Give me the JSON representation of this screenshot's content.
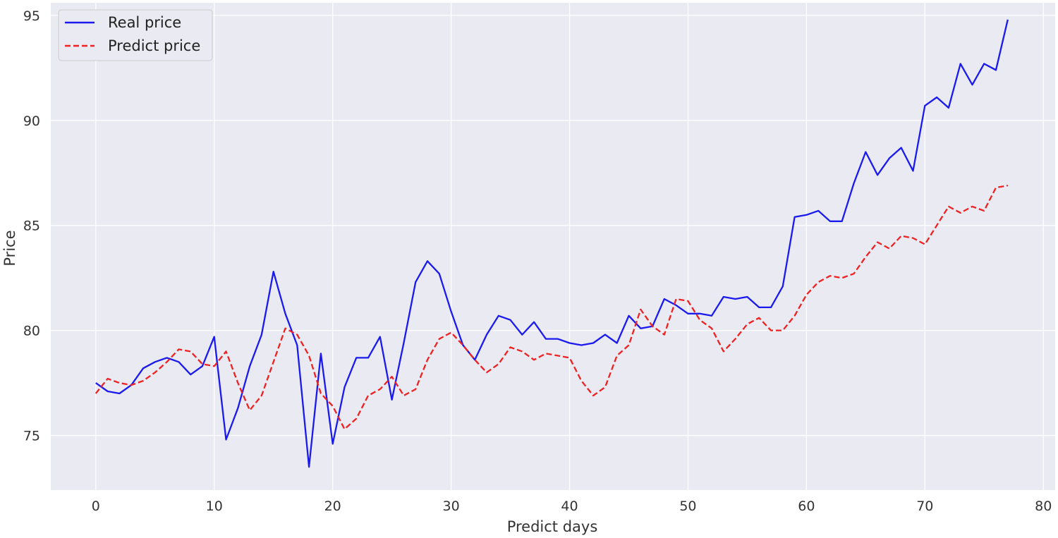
{
  "chart_data": {
    "type": "line",
    "xlabel": "Predict days",
    "ylabel": "Price",
    "xlim": [
      -3.8,
      81.0
    ],
    "ylim": [
      72.4,
      95.6
    ],
    "xticks": [
      0,
      10,
      20,
      30,
      40,
      50,
      60,
      70,
      80
    ],
    "yticks": [
      75,
      80,
      85,
      90,
      95
    ],
    "grid": true,
    "legend_position": "top-left",
    "colors": {
      "background": "#eaeaf2",
      "grid": "#ffffff",
      "real": "#1a1aee",
      "predict": "#ee2222"
    },
    "x": [
      0,
      1,
      2,
      3,
      4,
      5,
      6,
      7,
      8,
      9,
      10,
      11,
      12,
      13,
      14,
      15,
      16,
      17,
      18,
      19,
      20,
      21,
      22,
      23,
      24,
      25,
      26,
      27,
      28,
      29,
      30,
      31,
      32,
      33,
      34,
      35,
      36,
      37,
      38,
      39,
      40,
      41,
      42,
      43,
      44,
      45,
      46,
      47,
      48,
      49,
      50,
      51,
      52,
      53,
      54,
      55,
      56,
      57,
      58,
      59,
      60,
      61,
      62,
      63,
      64,
      65,
      66,
      67,
      68,
      69,
      70,
      71,
      72,
      73,
      74,
      75,
      76,
      77
    ],
    "series": [
      {
        "name": "Real price",
        "style": "solid",
        "values": [
          77.5,
          77.1,
          77.0,
          77.4,
          78.2,
          78.5,
          78.7,
          78.5,
          77.9,
          78.3,
          79.7,
          74.8,
          76.3,
          78.3,
          79.8,
          82.8,
          80.8,
          79.3,
          73.5,
          78.9,
          74.6,
          77.3,
          78.7,
          78.7,
          79.7,
          76.7,
          79.4,
          82.3,
          83.3,
          82.7,
          80.9,
          79.3,
          78.6,
          79.8,
          80.7,
          80.5,
          79.8,
          80.4,
          79.6,
          79.6,
          79.4,
          79.3,
          79.4,
          79.8,
          79.4,
          80.7,
          80.1,
          80.2,
          81.5,
          81.2,
          80.8,
          80.8,
          80.7,
          81.6,
          81.5,
          81.6,
          81.1,
          81.1,
          82.1,
          85.4,
          85.5,
          85.7,
          85.2,
          85.2,
          87.0,
          88.5,
          87.4,
          88.2,
          88.7,
          87.6,
          90.7,
          91.1,
          90.6,
          92.7,
          91.7,
          92.7,
          92.4,
          94.8
        ]
      },
      {
        "name": "Predict price",
        "style": "dashed",
        "values": [
          77.0,
          77.7,
          77.5,
          77.4,
          77.6,
          78.0,
          78.5,
          79.1,
          79.0,
          78.4,
          78.3,
          79.0,
          77.5,
          76.2,
          76.9,
          78.5,
          80.1,
          79.8,
          78.8,
          77.0,
          76.4,
          75.3,
          75.8,
          76.9,
          77.2,
          77.8,
          76.9,
          77.2,
          78.6,
          79.6,
          79.9,
          79.3,
          78.6,
          78.0,
          78.4,
          79.2,
          79.0,
          78.6,
          78.9,
          78.8,
          78.7,
          77.6,
          76.9,
          77.3,
          78.8,
          79.3,
          81.0,
          80.2,
          79.8,
          81.5,
          81.4,
          80.5,
          80.1,
          79.0,
          79.6,
          80.3,
          80.6,
          80.0,
          80.0,
          80.7,
          81.7,
          82.3,
          82.6,
          82.5,
          82.7,
          83.5,
          84.2,
          83.9,
          84.5,
          84.4,
          84.1,
          85.0,
          85.9,
          85.6,
          85.9,
          85.7,
          86.8,
          86.9
        ]
      }
    ]
  }
}
